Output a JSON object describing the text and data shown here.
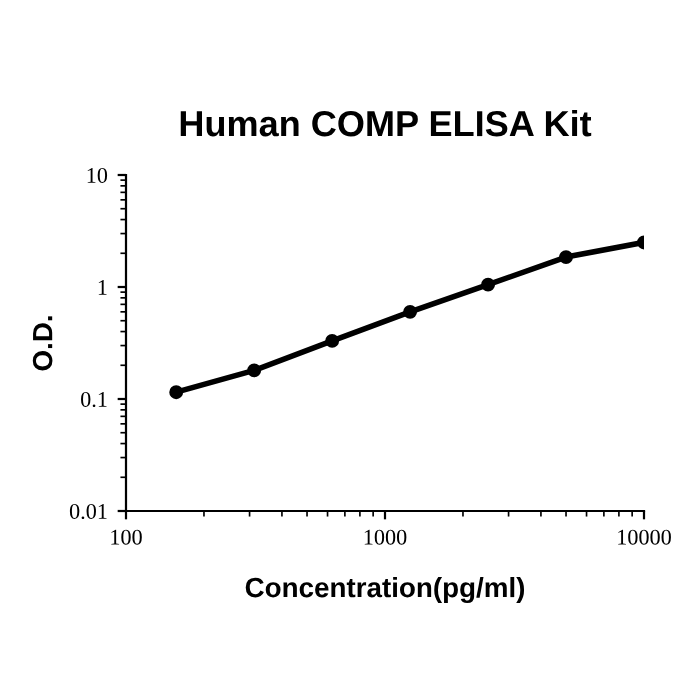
{
  "chart_data": {
    "type": "line",
    "title": "Human COMP ELISA Kit",
    "xlabel": "Concentration(pg/ml)",
    "ylabel": "O.D.",
    "x": [
      156.25,
      312.5,
      625,
      1250,
      2500,
      5000,
      10000
    ],
    "series": [
      {
        "color": "#000000",
        "values": [
          0.115,
          0.18,
          0.33,
          0.6,
          1.05,
          1.85,
          2.5
        ]
      }
    ],
    "log": "xy",
    "xlim": [
      100,
      10000
    ],
    "ylim": [
      0.01,
      10
    ],
    "xticks": [
      100,
      1000,
      10000
    ],
    "yticks": [
      0.01,
      0.1,
      1,
      10
    ],
    "grid": false,
    "legend": false,
    "marker": "circle",
    "line_style": "solid"
  }
}
